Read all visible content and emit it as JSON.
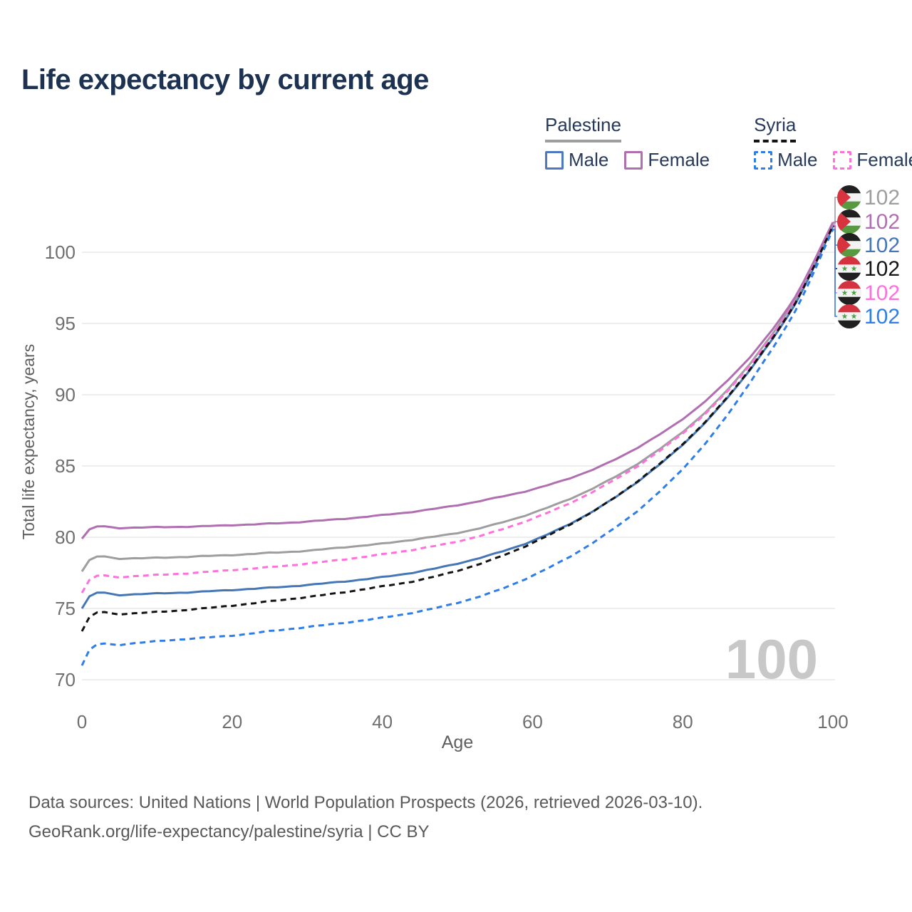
{
  "title": "Life expectancy by current age",
  "legend": {
    "palestine": {
      "label": "Palestine",
      "male": "Male",
      "female": "Female"
    },
    "syria": {
      "label": "Syria",
      "male": "Male",
      "female": "Female"
    }
  },
  "watermark": "100",
  "footer": {
    "line1": "Data sources: United Nations | World Population Prospects (2026, retrieved 2026-03-10).",
    "line2": "GeoRank.org/life-expectancy/palestine/syria | CC BY"
  },
  "colors": {
    "title": "#1d3150",
    "grid": "#e9e9e9",
    "tick_text": "#6f6f6f",
    "axis_title_text": "#5f5f5f",
    "watermark": "#c8c8c8",
    "palestine_total": "#9e9e9e",
    "palestine_female": "#b06fb0",
    "palestine_male": "#4576b5",
    "syria_total": "#141414",
    "syria_female": "#ff70dd",
    "syria_male": "#2e7de8",
    "flag_black": "#202020",
    "flag_white": "#f3f3f3",
    "flag_green_pal": "#579a3f",
    "flag_red_pal": "#d8343f",
    "flag_red_syr": "#d5323f",
    "flag_star_green": "#4da043"
  },
  "chart_data": {
    "type": "line",
    "title": "Life expectancy by current age",
    "xlabel": "Age",
    "ylabel": "Total life expectancy, years",
    "x_ticks": [
      0,
      20,
      40,
      60,
      80,
      100
    ],
    "y_ticks": [
      70,
      75,
      80,
      85,
      90,
      95,
      100
    ],
    "xlim": [
      0,
      100
    ],
    "ylim": [
      70,
      100
    ],
    "grid": "horizontal-only",
    "legend_position": "top-right",
    "current_age_indicator": "100",
    "x": [
      0,
      1,
      5,
      10,
      15,
      20,
      25,
      30,
      35,
      40,
      45,
      50,
      55,
      60,
      65,
      70,
      75,
      80,
      85,
      90,
      95,
      100
    ],
    "series": [
      {
        "id": "palestine-total",
        "country": "Palestine",
        "sex": "total",
        "style": "solid",
        "color": "#9e9e9e",
        "end_label": "102",
        "flag": "palestine",
        "values": [
          77.6,
          78.4,
          78.5,
          78.55,
          78.65,
          78.75,
          78.9,
          79.05,
          79.3,
          79.55,
          79.9,
          80.3,
          80.9,
          81.7,
          82.7,
          83.95,
          85.5,
          87.4,
          89.8,
          92.9,
          96.7,
          102.0
        ]
      },
      {
        "id": "palestine-female",
        "country": "Palestine",
        "sex": "female",
        "style": "solid",
        "color": "#b06fb0",
        "end_label": "102",
        "flag": "palestine",
        "values": [
          79.9,
          80.55,
          80.65,
          80.7,
          80.75,
          80.85,
          80.95,
          81.1,
          81.3,
          81.55,
          81.85,
          82.25,
          82.75,
          83.35,
          84.15,
          85.2,
          86.6,
          88.3,
          90.5,
          93.3,
          96.9,
          102.1
        ]
      },
      {
        "id": "palestine-male",
        "country": "Palestine",
        "sex": "male",
        "style": "solid",
        "color": "#4576b5",
        "end_label": "102",
        "flag": "palestine",
        "values": [
          75.0,
          75.85,
          75.95,
          76.05,
          76.15,
          76.3,
          76.45,
          76.65,
          76.9,
          77.2,
          77.6,
          78.15,
          78.85,
          79.75,
          80.95,
          82.45,
          84.3,
          86.5,
          89.2,
          92.5,
          96.4,
          101.8
        ]
      },
      {
        "id": "syria-total",
        "country": "Syria",
        "sex": "total",
        "style": "dashed",
        "color": "#141414",
        "end_label": "102",
        "flag": "syria",
        "values": [
          73.4,
          74.4,
          74.6,
          74.75,
          74.95,
          75.2,
          75.5,
          75.8,
          76.15,
          76.55,
          77.0,
          77.65,
          78.5,
          79.6,
          80.9,
          82.45,
          84.35,
          86.55,
          89.25,
          92.55,
          96.45,
          101.85
        ]
      },
      {
        "id": "syria-female",
        "country": "Syria",
        "sex": "female",
        "style": "dashed",
        "color": "#ff70dd",
        "end_label": "102",
        "flag": "syria",
        "values": [
          76.1,
          77.0,
          77.2,
          77.35,
          77.5,
          77.7,
          77.9,
          78.15,
          78.45,
          78.8,
          79.2,
          79.7,
          80.4,
          81.3,
          82.4,
          83.75,
          85.35,
          87.3,
          89.7,
          92.8,
          96.6,
          101.9
        ]
      },
      {
        "id": "syria-male",
        "country": "Syria",
        "sex": "male",
        "style": "dashed",
        "color": "#2e7de8",
        "end_label": "102",
        "flag": "syria",
        "values": [
          71.0,
          72.1,
          72.45,
          72.7,
          72.9,
          73.1,
          73.4,
          73.7,
          74.0,
          74.35,
          74.8,
          75.4,
          76.2,
          77.3,
          78.65,
          80.3,
          82.3,
          84.8,
          87.9,
          91.7,
          95.9,
          101.6
        ]
      }
    ]
  }
}
